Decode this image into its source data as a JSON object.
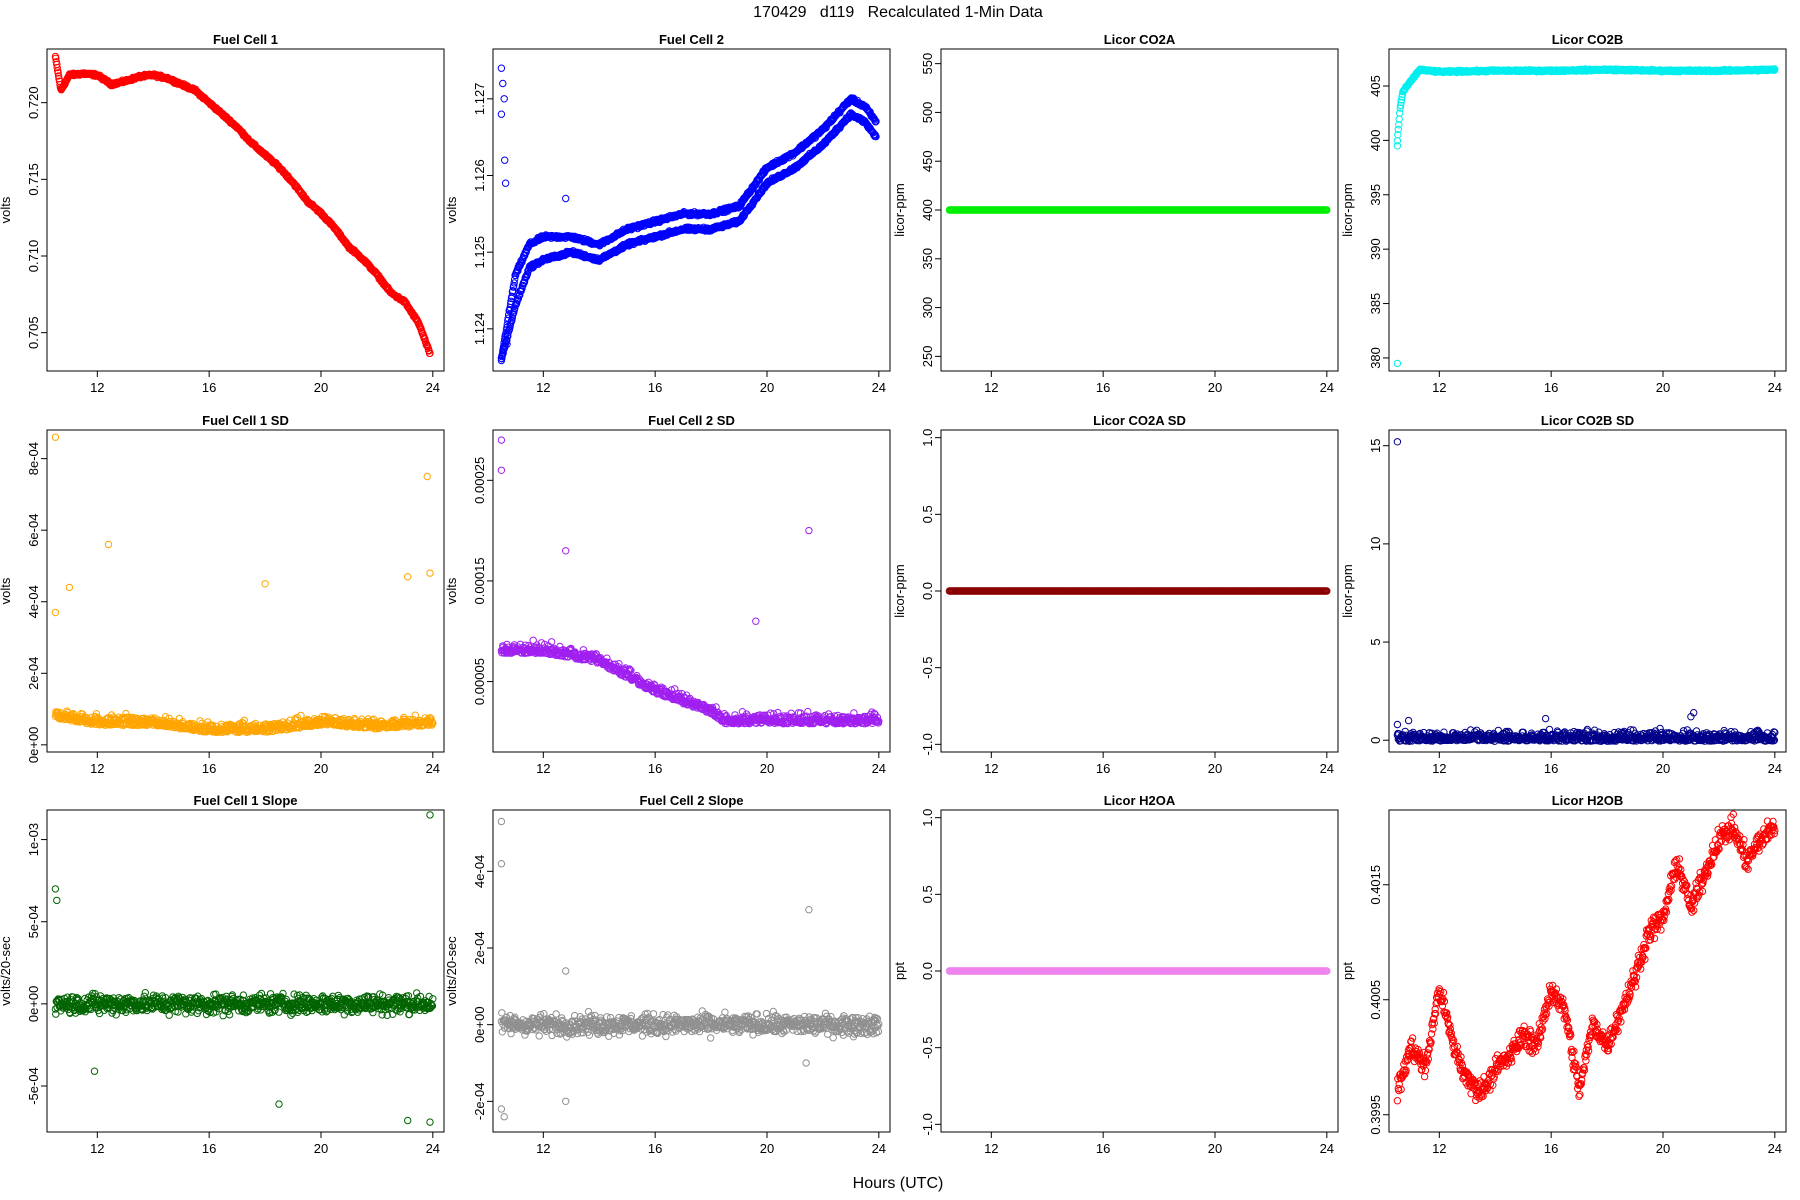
{
  "figure": {
    "title": "170429   d119   Recalculated 1-Min Data",
    "xlabel": "Hours (UTC)"
  },
  "chart_data": [
    {
      "type": "scatter",
      "title": "Fuel Cell 1",
      "ylabel": "volts",
      "xlim": [
        10.2,
        24.4
      ],
      "ylim": [
        0.7025,
        0.7235
      ],
      "xticks": [
        12,
        16,
        20,
        24
      ],
      "xtick_labels": [
        "12",
        "16",
        "20",
        "24"
      ],
      "yticks": [
        0.705,
        0.71,
        0.715,
        0.72
      ],
      "ytick_labels": [
        "0.705",
        "0.710",
        "0.715",
        "0.720"
      ],
      "color": "#ff0000",
      "series": [
        {
          "x": [
            10.5,
            10.7,
            11,
            11.5,
            12,
            12.5,
            13,
            13.5,
            14,
            14.5,
            15,
            15.5,
            16,
            16.5,
            17,
            17.5,
            18,
            18.5,
            19,
            19.5,
            20,
            20.5,
            21,
            21.5,
            22,
            22.5,
            23,
            23.5,
            23.9
          ],
          "y": [
            0.723,
            0.7208,
            0.7218,
            0.7219,
            0.7218,
            0.7212,
            0.7214,
            0.7217,
            0.7218,
            0.7216,
            0.7212,
            0.7208,
            0.72,
            0.7192,
            0.7184,
            0.7174,
            0.7166,
            0.7158,
            0.7148,
            0.7136,
            0.7128,
            0.7118,
            0.7106,
            0.7098,
            0.7088,
            0.7076,
            0.707,
            0.7056,
            0.7036
          ]
        }
      ]
    },
    {
      "type": "scatter",
      "title": "Fuel Cell 2",
      "ylabel": "volts",
      "xlim": [
        10.2,
        24.4
      ],
      "ylim": [
        1.12345,
        1.12765
      ],
      "xticks": [
        12,
        16,
        20,
        24
      ],
      "xtick_labels": [
        "12",
        "16",
        "20",
        "24"
      ],
      "yticks": [
        1.124,
        1.125,
        1.126,
        1.127
      ],
      "ytick_labels": [
        "1.124",
        "1.125",
        "1.126",
        "1.127"
      ],
      "color": "#0000ff",
      "series": [
        {
          "x": [
            10.5,
            11,
            11.5,
            12,
            13,
            14,
            15,
            16,
            17,
            18,
            19,
            20,
            21,
            22,
            22.5,
            23,
            23.5,
            23.9
          ],
          "y": [
            1.1236,
            1.1247,
            1.1251,
            1.1252,
            1.1252,
            1.1251,
            1.1253,
            1.1254,
            1.1255,
            1.1255,
            1.1256,
            1.1261,
            1.1263,
            1.1266,
            1.1268,
            1.127,
            1.1269,
            1.1267
          ]
        },
        {
          "x": [
            10.5,
            11,
            11.5,
            12,
            13,
            14,
            15,
            16,
            17,
            18,
            19,
            20,
            21,
            22,
            22.5,
            23,
            23.5,
            23.9
          ],
          "y": [
            1.1236,
            1.1243,
            1.1248,
            1.1249,
            1.125,
            1.1249,
            1.1251,
            1.1252,
            1.1253,
            1.1253,
            1.1254,
            1.1259,
            1.1261,
            1.1264,
            1.1266,
            1.1268,
            1.1267,
            1.1265
          ]
        }
      ],
      "outliers": [
        [
          10.5,
          1.1274
        ],
        [
          10.55,
          1.1272
        ],
        [
          10.6,
          1.127
        ],
        [
          10.62,
          1.1262
        ],
        [
          10.65,
          1.1259
        ],
        [
          10.5,
          1.1268
        ],
        [
          12.8,
          1.1257
        ],
        [
          10.7,
          1.1238
        ],
        [
          10.75,
          1.1234
        ]
      ]
    },
    {
      "type": "scatter",
      "title": "Licor CO2A",
      "ylabel": "licor-ppm",
      "xlim": [
        10.2,
        24.4
      ],
      "ylim": [
        235,
        565
      ],
      "xticks": [
        12,
        16,
        20,
        24
      ],
      "xtick_labels": [
        "12",
        "16",
        "20",
        "24"
      ],
      "yticks": [
        250,
        300,
        350,
        400,
        450,
        500,
        550
      ],
      "ytick_labels": [
        "250",
        "300",
        "350",
        "400",
        "450",
        "500",
        "550"
      ],
      "color": "#00ee00",
      "series": [
        {
          "x": [
            10.5,
            24
          ],
          "y": [
            400,
            400
          ]
        }
      ]
    },
    {
      "type": "scatter",
      "title": "Licor CO2B",
      "ylabel": "licor-ppm",
      "xlim": [
        10.2,
        24.4
      ],
      "ylim": [
        378.8,
        408.4
      ],
      "xticks": [
        12,
        16,
        20,
        24
      ],
      "xtick_labels": [
        "12",
        "16",
        "20",
        "24"
      ],
      "yticks": [
        380,
        385,
        390,
        395,
        400,
        405
      ],
      "ytick_labels": [
        "380",
        "385",
        "390",
        "395",
        "400",
        "405"
      ],
      "color": "#00eeee",
      "series": [
        {
          "x": [
            10.5,
            10.6,
            10.7,
            11,
            11.3,
            12,
            14,
            16,
            18,
            20,
            22,
            24
          ],
          "y": [
            400,
            403,
            404.5,
            405.5,
            406.5,
            406.3,
            406.4,
            406.4,
            406.5,
            406.4,
            406.4,
            406.5
          ]
        }
      ],
      "outliers": [
        [
          10.5,
          379.5
        ],
        [
          10.5,
          399.5
        ]
      ]
    },
    {
      "type": "scatter",
      "title": "Fuel Cell 1 SD",
      "ylabel": "volts",
      "xlim": [
        10.2,
        24.4
      ],
      "ylim": [
        -2e-05,
        0.00088
      ],
      "xticks": [
        12,
        16,
        20,
        24
      ],
      "xtick_labels": [
        "12",
        "16",
        "20",
        "24"
      ],
      "yticks": [
        0,
        0.0002,
        0.0004,
        0.0006,
        0.0008
      ],
      "ytick_labels": [
        "0e+00",
        "2e-04",
        "4e-04",
        "6e-04",
        "8e-04"
      ],
      "color": "#ffa500",
      "series": [
        {
          "x": [
            10.5,
            12,
            14,
            16,
            18,
            20,
            22,
            24
          ],
          "y": [
            8e-05,
            6e-05,
            6e-05,
            4e-05,
            4e-05,
            6e-05,
            5e-05,
            6e-05
          ]
        }
      ],
      "outliers": [
        [
          10.5,
          0.00086
        ],
        [
          10.5,
          0.00037
        ],
        [
          11,
          0.00044
        ],
        [
          12.4,
          0.00056
        ],
        [
          23.8,
          0.00075
        ],
        [
          23.9,
          0.00048
        ],
        [
          18,
          0.00045
        ],
        [
          23.1,
          0.00047
        ]
      ]
    },
    {
      "type": "scatter",
      "title": "Fuel Cell 2 SD",
      "ylabel": "volts",
      "xlim": [
        10.2,
        24.4
      ],
      "ylim": [
        -2e-05,
        0.0003
      ],
      "xticks": [
        12,
        16,
        20,
        24
      ],
      "xtick_labels": [
        "12",
        "16",
        "20",
        "24"
      ],
      "yticks": [
        5e-05,
        0.00015,
        0.00025
      ],
      "ytick_labels": [
        "0.00005",
        "0.00015",
        "0.00025"
      ],
      "color": "#a020f0",
      "series": [
        {
          "x": [
            10.5,
            12,
            14,
            16,
            17,
            18,
            18.5,
            20,
            22,
            24
          ],
          "y": [
            8e-05,
            8e-05,
            7e-05,
            4e-05,
            3e-05,
            2e-05,
            1e-05,
            1e-05,
            1e-05,
            1e-05
          ]
        }
      ],
      "outliers": [
        [
          10.5,
          0.00029
        ],
        [
          10.5,
          0.00026
        ],
        [
          12.8,
          0.00018
        ],
        [
          21.5,
          0.0002
        ],
        [
          19.6,
          0.00011
        ]
      ]
    },
    {
      "type": "scatter",
      "title": "Licor CO2A SD",
      "ylabel": "licor-ppm",
      "xlim": [
        10.2,
        24.4
      ],
      "ylim": [
        -1.05,
        1.05
      ],
      "xticks": [
        12,
        16,
        20,
        24
      ],
      "xtick_labels": [
        "12",
        "16",
        "20",
        "24"
      ],
      "yticks": [
        -1.0,
        -0.5,
        0.0,
        0.5,
        1.0
      ],
      "ytick_labels": [
        "-1.0",
        "-0.5",
        "0.0",
        "0.5",
        "1.0"
      ],
      "color": "#8b0000",
      "series": [
        {
          "x": [
            10.5,
            24
          ],
          "y": [
            0,
            0
          ]
        }
      ]
    },
    {
      "type": "scatter",
      "title": "Licor CO2B SD",
      "ylabel": "licor-ppm",
      "xlim": [
        10.2,
        24.4
      ],
      "ylim": [
        -0.6,
        15.8
      ],
      "xticks": [
        12,
        16,
        20,
        24
      ],
      "xtick_labels": [
        "12",
        "16",
        "20",
        "24"
      ],
      "yticks": [
        0,
        5,
        10,
        15
      ],
      "ytick_labels": [
        "0",
        "5",
        "10",
        "15"
      ],
      "color": "#00008b",
      "series": [
        {
          "x": [
            10.5,
            24
          ],
          "y": [
            0.05,
            0.05
          ]
        }
      ],
      "outliers": [
        [
          10.5,
          15.2
        ],
        [
          10.5,
          0.8
        ],
        [
          10.9,
          1.0
        ],
        [
          15.8,
          1.1
        ],
        [
          21.1,
          1.4
        ],
        [
          21.0,
          1.2
        ],
        [
          15.7,
          0.4
        ]
      ]
    },
    {
      "type": "scatter",
      "title": "Fuel Cell 1 Slope",
      "ylabel": "volts/20-sec",
      "xlim": [
        10.2,
        24.4
      ],
      "ylim": [
        -0.00078,
        0.00118
      ],
      "xticks": [
        12,
        16,
        20,
        24
      ],
      "xtick_labels": [
        "12",
        "16",
        "20",
        "24"
      ],
      "yticks": [
        -0.0005,
        0,
        0.0005,
        0.001
      ],
      "ytick_labels": [
        "-5e-04",
        "0e+00",
        "5e-04",
        "1e-03"
      ],
      "color": "#006400",
      "series": [
        {
          "x": [
            10.5,
            24
          ],
          "y": [
            0,
            0
          ]
        }
      ],
      "outliers": [
        [
          10.5,
          0.0007
        ],
        [
          10.55,
          0.00063
        ],
        [
          23.9,
          0.00115
        ],
        [
          18.5,
          -0.00061
        ],
        [
          23.1,
          -0.00071
        ],
        [
          23.9,
          -0.00072
        ],
        [
          11.9,
          -0.00041
        ]
      ]
    },
    {
      "type": "scatter",
      "title": "Fuel Cell 2 Slope",
      "ylabel": "volts/20-sec",
      "xlim": [
        10.2,
        24.4
      ],
      "ylim": [
        -0.00028,
        0.00056
      ],
      "xticks": [
        12,
        16,
        20,
        24
      ],
      "xtick_labels": [
        "12",
        "16",
        "20",
        "24"
      ],
      "yticks": [
        -0.0002,
        0,
        0.0002,
        0.0004
      ],
      "ytick_labels": [
        "-2e-04",
        "0e+00",
        "2e-04",
        "4e-04"
      ],
      "color": "#909090",
      "series": [
        {
          "x": [
            10.5,
            24
          ],
          "y": [
            0,
            0
          ]
        }
      ],
      "outliers": [
        [
          10.5,
          0.00053
        ],
        [
          10.5,
          0.00042
        ],
        [
          21.5,
          0.0003
        ],
        [
          12.8,
          -0.0002
        ],
        [
          10.5,
          -0.00022
        ],
        [
          10.6,
          -0.00024
        ],
        [
          21.4,
          -0.0001
        ],
        [
          12.8,
          0.00014
        ]
      ]
    },
    {
      "type": "scatter",
      "title": "Licor H2OA",
      "ylabel": "ppt",
      "xlim": [
        10.2,
        24.4
      ],
      "ylim": [
        -1.05,
        1.05
      ],
      "xticks": [
        12,
        16,
        20,
        24
      ],
      "xtick_labels": [
        "12",
        "16",
        "20",
        "24"
      ],
      "yticks": [
        -1.0,
        -0.5,
        0.0,
        0.5,
        1.0
      ],
      "ytick_labels": [
        "-1.0",
        "-0.5",
        "0.0",
        "0.5",
        "1.0"
      ],
      "color": "#ee82ee",
      "series": [
        {
          "x": [
            10.5,
            24
          ],
          "y": [
            0,
            0
          ]
        }
      ]
    },
    {
      "type": "scatter",
      "title": "Licor H2OB",
      "ylabel": "ppt",
      "xlim": [
        10.2,
        24.4
      ],
      "ylim": [
        0.39935,
        0.40215
      ],
      "xticks": [
        12,
        16,
        20,
        24
      ],
      "xtick_labels": [
        "12",
        "16",
        "20",
        "24"
      ],
      "yticks": [
        0.3995,
        0.4005,
        0.4015
      ],
      "ytick_labels": [
        "0.3995",
        "0.4005",
        "0.4015"
      ],
      "color": "#ff0000",
      "series": [
        {
          "x": [
            10.5,
            11,
            11.5,
            12,
            12.5,
            13,
            13.5,
            14,
            14.5,
            15,
            15.5,
            16,
            16.5,
            17,
            17.5,
            18,
            18.5,
            19,
            19.5,
            20,
            20.5,
            21,
            21.5,
            22,
            22.5,
            23,
            23.5,
            24
          ],
          "y": [
            0.3997,
            0.4001,
            0.3999,
            0.4006,
            0.4001,
            0.3998,
            0.3997,
            0.3999,
            0.4,
            0.4002,
            0.4001,
            0.4006,
            0.4004,
            0.3997,
            0.4003,
            0.4001,
            0.4004,
            0.4007,
            0.4011,
            0.4012,
            0.4017,
            0.4013,
            0.4016,
            0.4019,
            0.402,
            0.4017,
            0.4019,
            0.402
          ]
        }
      ]
    }
  ]
}
